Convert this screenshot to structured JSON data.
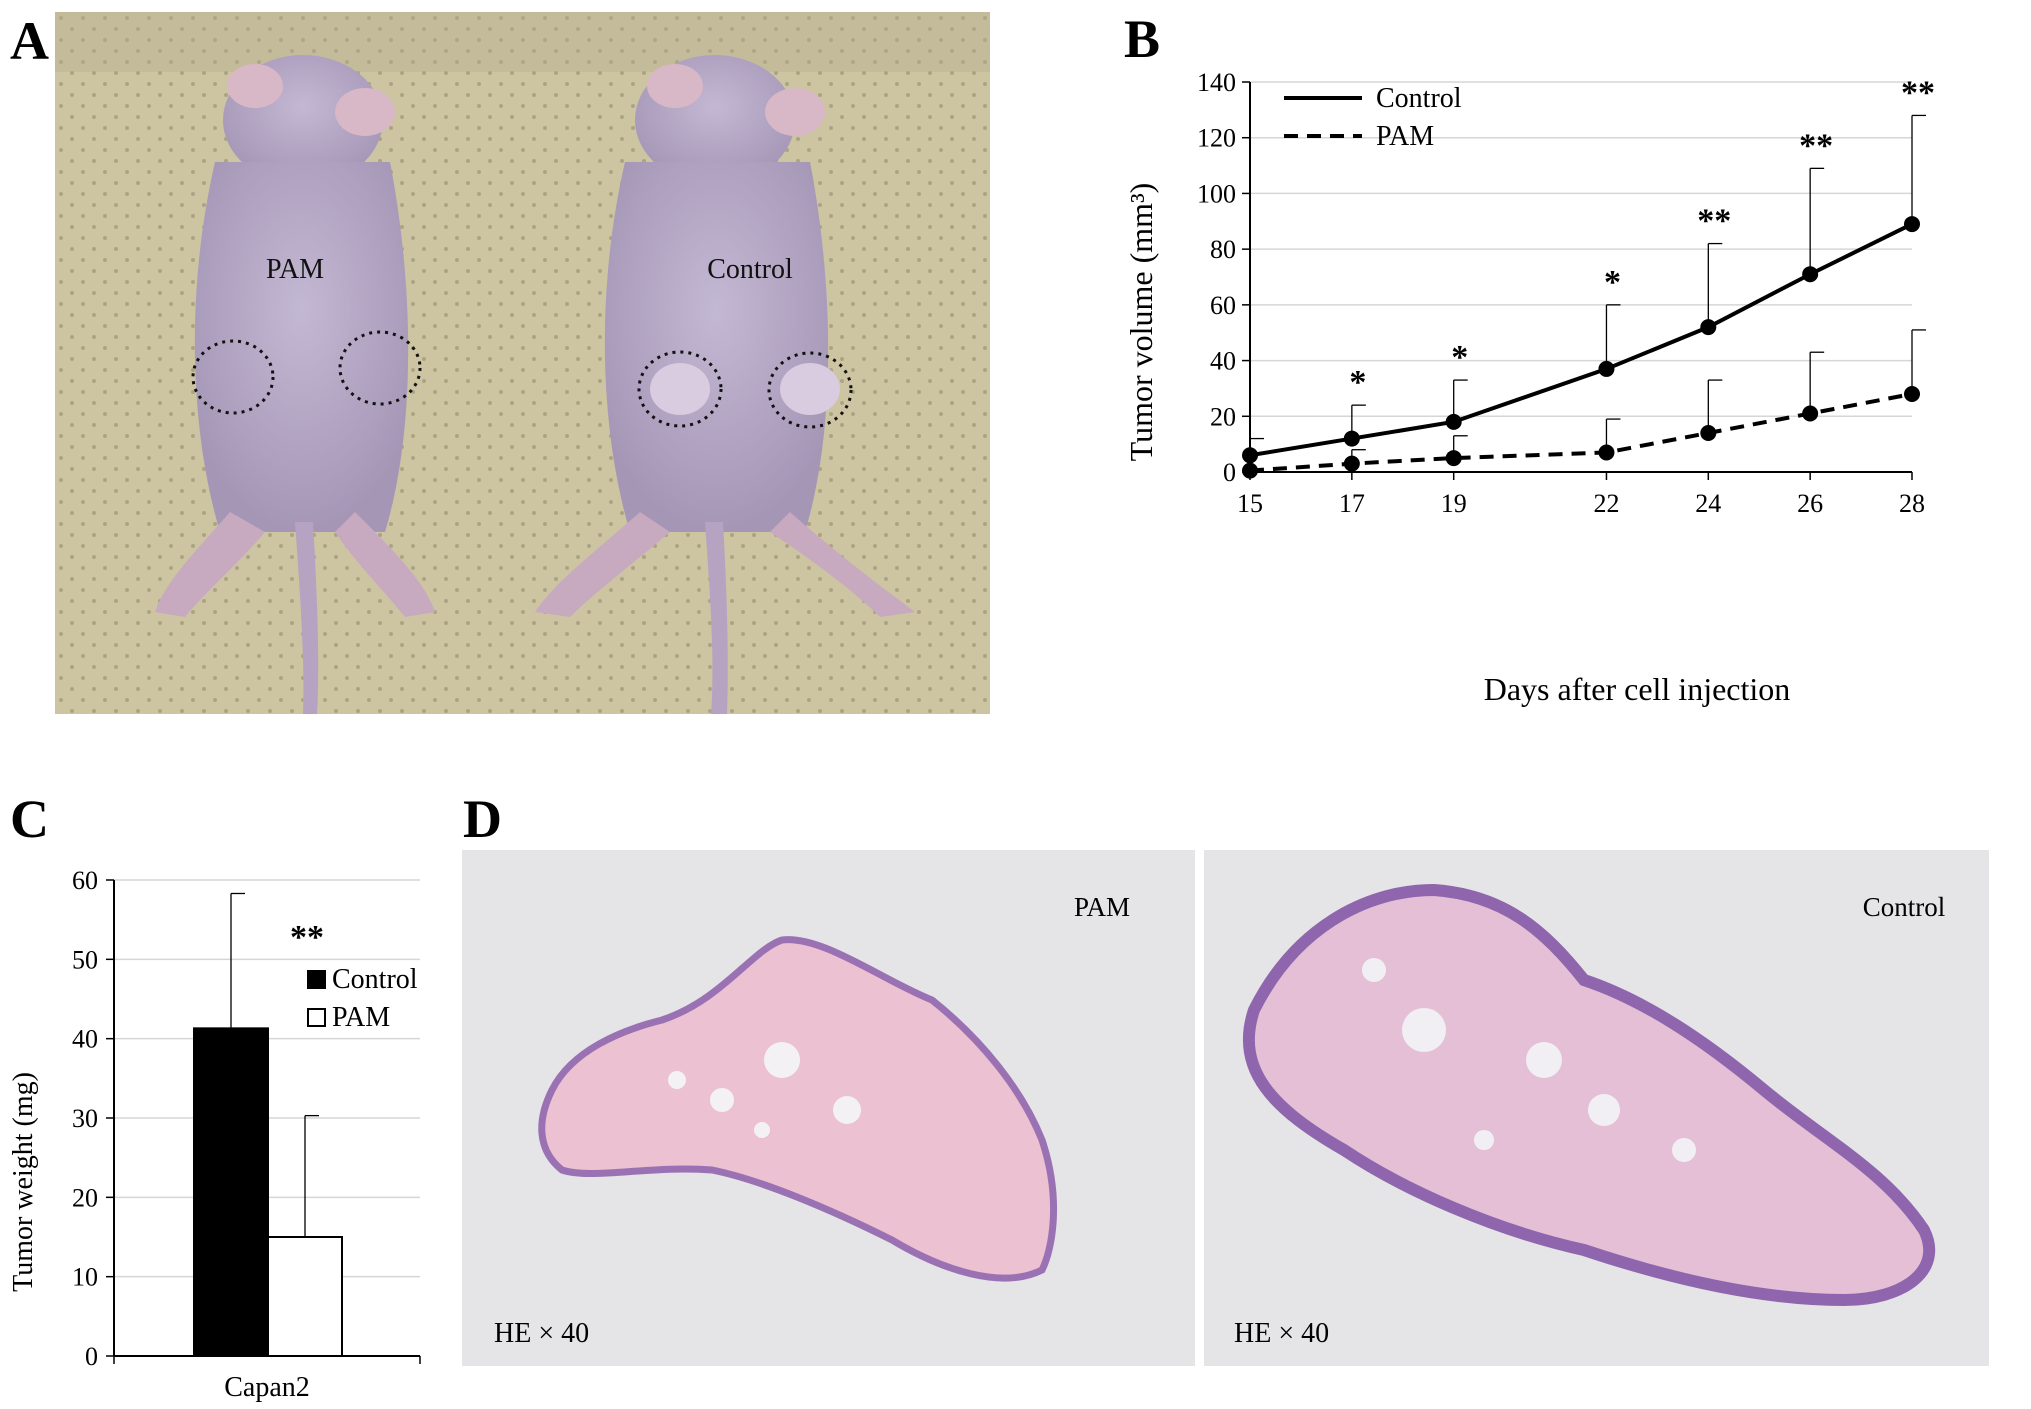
{
  "panels": {
    "a": "A",
    "b": "B",
    "c": "C",
    "d": "D"
  },
  "photo_a": {
    "left_label": "PAM",
    "right_label": "Control"
  },
  "histology": {
    "left": {
      "label": "PAM",
      "magnification": "HE × 40"
    },
    "right": {
      "label": "Control",
      "magnification": "HE × 40"
    }
  },
  "colors": {
    "control_bar": "#000000",
    "pam_bar": "#ffffff",
    "photo_bg": "#cfc6a4",
    "mouse": "#b7abc6",
    "tissue": "#e9bfd3",
    "tissue_edge": "#9b72b6"
  },
  "chart_data": [
    {
      "type": "line",
      "panel": "B",
      "xlabel": "Days after cell injection",
      "ylabel": "Tumor volume (mm³)",
      "x": [
        15,
        17,
        19,
        22,
        24,
        26,
        28
      ],
      "ylim": [
        0,
        140
      ],
      "yticks": [
        0,
        20,
        40,
        60,
        80,
        100,
        120,
        140
      ],
      "grid": true,
      "legend": "top-left",
      "series": [
        {
          "name": "Control",
          "style": "solid",
          "values": [
            6,
            12,
            18,
            37,
            52,
            71,
            89
          ],
          "error": [
            6,
            12,
            15,
            23,
            30,
            38,
            39
          ]
        },
        {
          "name": "PAM",
          "style": "dashed",
          "values": [
            0.5,
            3,
            5,
            7,
            14,
            21,
            28
          ],
          "error": [
            0,
            5,
            8,
            12,
            19,
            22,
            23
          ]
        }
      ],
      "significance": [
        "",
        "*",
        "*",
        "*",
        "**",
        "**",
        "**"
      ]
    },
    {
      "type": "bar",
      "panel": "C",
      "categories": [
        "Capan2"
      ],
      "ylabel": "Tumor weight (mg)",
      "ylim": [
        0,
        60
      ],
      "yticks": [
        0,
        10,
        20,
        30,
        40,
        50,
        60
      ],
      "grid": true,
      "legend": "top-right",
      "series": [
        {
          "name": "Control",
          "values": [
            41.3
          ],
          "error": [
            17
          ]
        },
        {
          "name": "PAM",
          "values": [
            15
          ],
          "error": [
            15.3
          ]
        }
      ],
      "significance": "**"
    }
  ]
}
